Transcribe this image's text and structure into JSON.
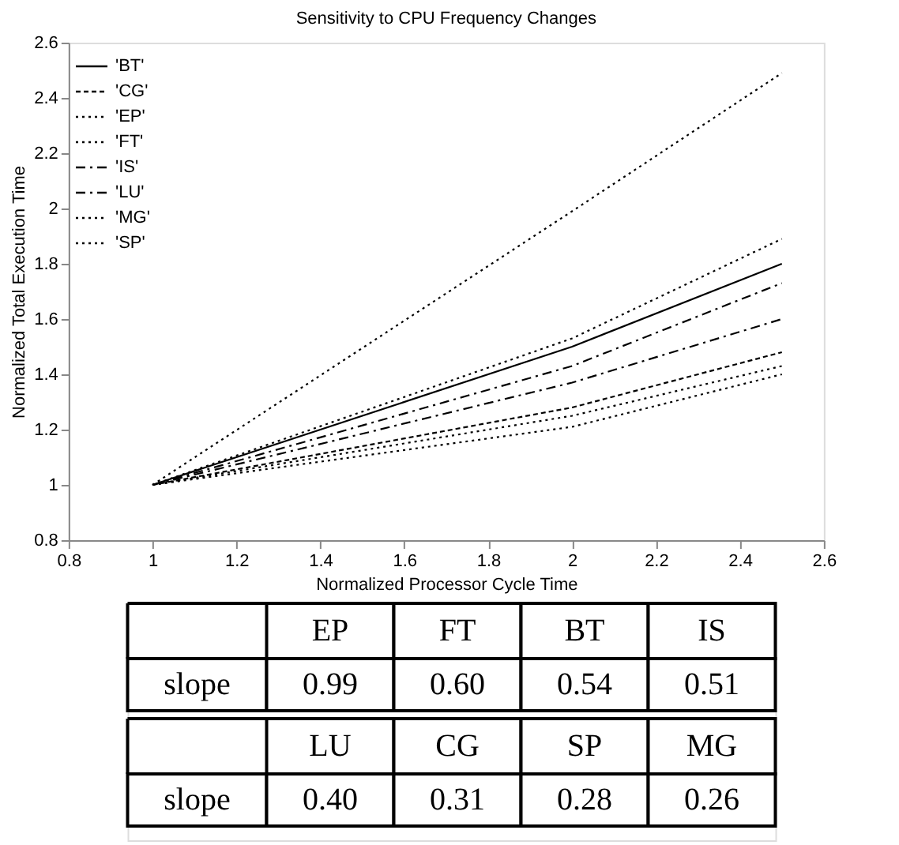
{
  "chart_data": {
    "type": "line",
    "title": "Sensitivity to CPU Frequency Changes",
    "xlabel": "Normalized Processor Cycle Time",
    "ylabel": "Normalized Total Execution Time",
    "x": [
      1,
      2,
      2.5
    ],
    "series": [
      {
        "name": "'BT'",
        "color": "#000000",
        "line_style": "solid",
        "values": [
          1,
          1.5,
          1.8
        ]
      },
      {
        "name": "'CG'",
        "color": "#000000",
        "line_style": "dashed",
        "values": [
          1,
          1.28,
          1.48
        ]
      },
      {
        "name": "'EP'",
        "color": "#000000",
        "line_style": "dotted",
        "values": [
          1,
          1.99,
          2.49
        ]
      },
      {
        "name": "'FT'",
        "color": "#000000",
        "line_style": "dotted",
        "values": [
          1,
          1.53,
          1.89
        ]
      },
      {
        "name": "'IS'",
        "color": "#000000",
        "line_style": "dashdot",
        "values": [
          1,
          1.43,
          1.73
        ]
      },
      {
        "name": "'LU'",
        "color": "#000000",
        "line_style": "dashdot",
        "values": [
          1,
          1.37,
          1.6
        ]
      },
      {
        "name": "'MG'",
        "color": "#000000",
        "line_style": "dotted",
        "values": [
          1,
          1.21,
          1.4
        ]
      },
      {
        "name": "'SP'",
        "color": "#000000",
        "line_style": "dotted",
        "values": [
          1,
          1.25,
          1.43
        ]
      }
    ],
    "xlim": [
      0.8,
      2.6
    ],
    "xticks": [
      0.8,
      1,
      1.2,
      1.4,
      1.6,
      1.8,
      2,
      2.2,
      2.4,
      2.6
    ],
    "ylim": [
      0.8,
      2.6
    ],
    "yticks": [
      0.8,
      1,
      1.2,
      1.4,
      1.6,
      1.8,
      2,
      2.2,
      2.4,
      2.6
    ],
    "grid": false,
    "legend": "top left",
    "marker": "none",
    "annotations": [
      "EP",
      "FT",
      "BT",
      "IS",
      "slope",
      "0.99",
      "0.60",
      "0.54",
      "0.51",
      "LU",
      "CG",
      "SP",
      "MG",
      "slope",
      "0.40",
      "0.31",
      "0.28",
      "0.26"
    ]
  }
}
